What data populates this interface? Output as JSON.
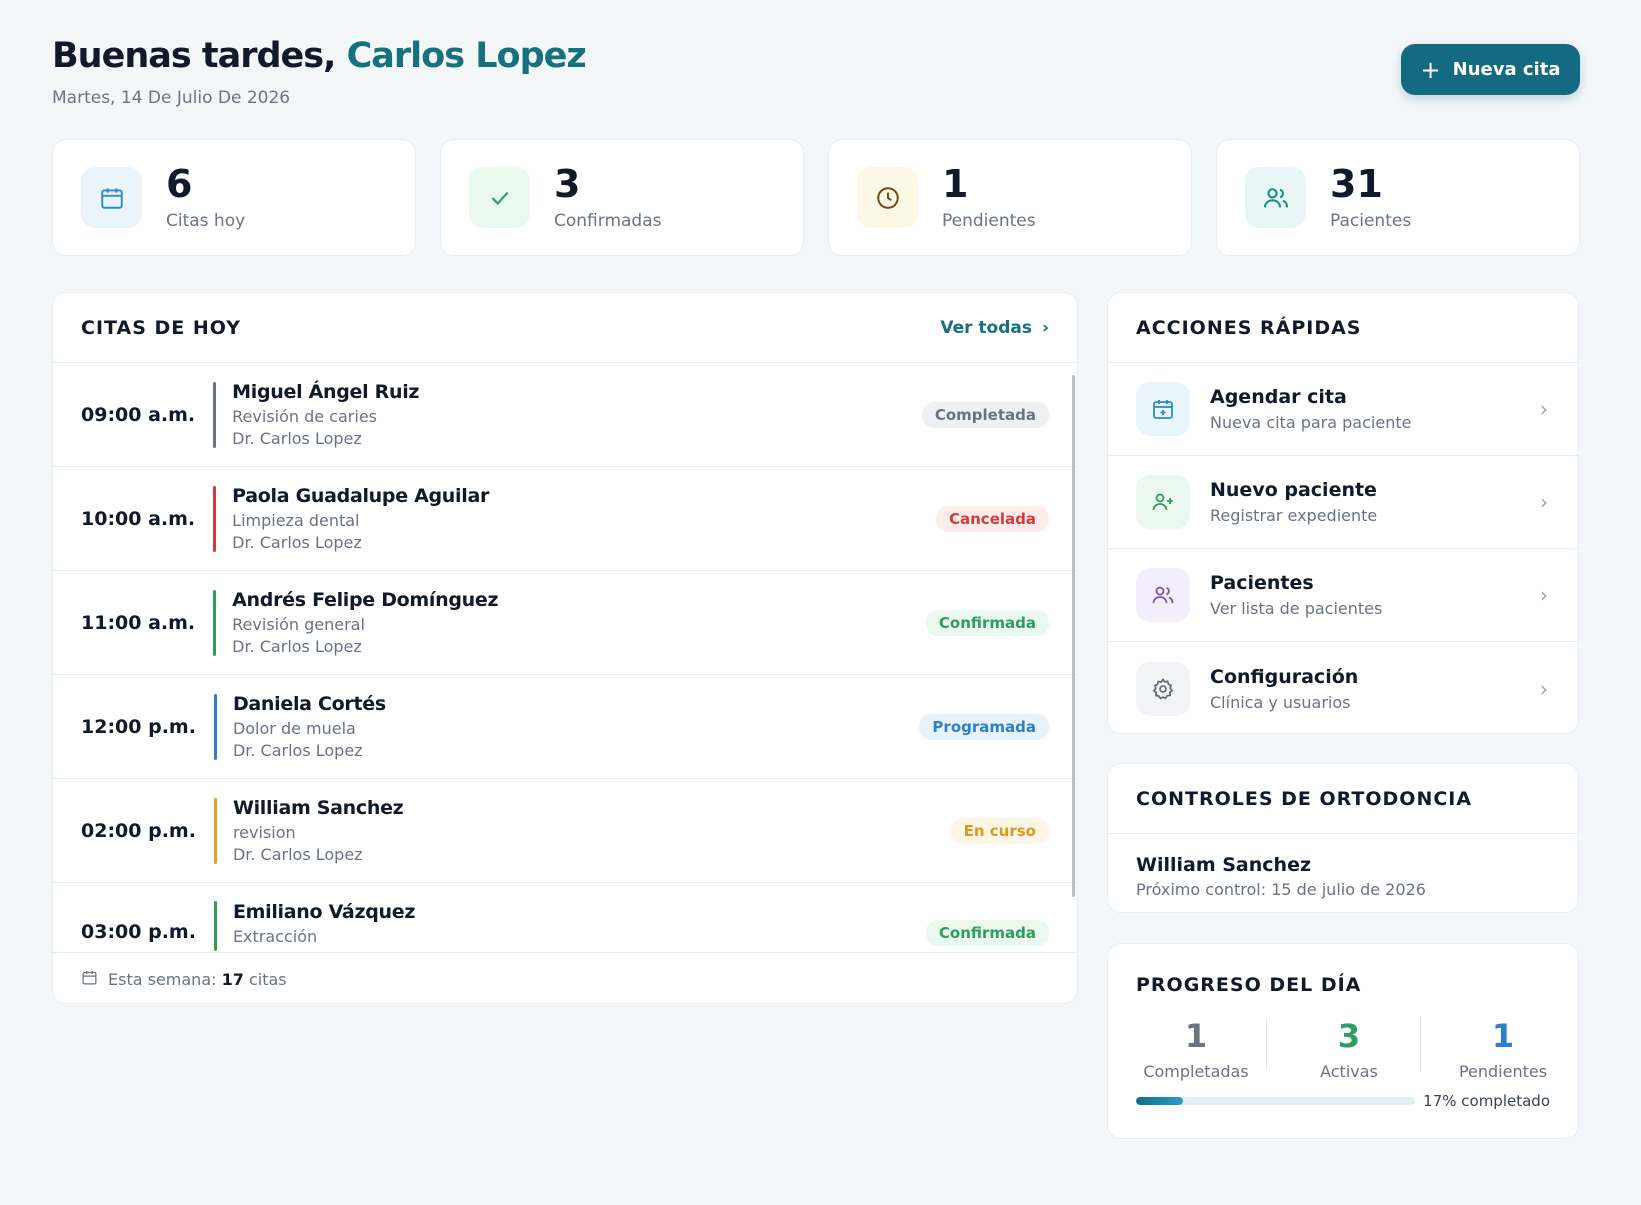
{
  "header": {
    "greeting": "Buenas tardes,",
    "user_name": "Carlos Lopez",
    "date": "Martes, 14 De Julio De 2026",
    "new_button_icon": "plus-icon",
    "new_button_label": "Nueva cita"
  },
  "stats": [
    {
      "icon": "calendar-icon",
      "value": "6",
      "label": "Citas hoy",
      "bg": "#eaf4fb",
      "color": "#2d8bc9"
    },
    {
      "icon": "check-icon",
      "value": "3",
      "label": "Confirmadas",
      "bg": "#eaf8ef",
      "color": "#2f9d5d"
    },
    {
      "icon": "clock-icon",
      "value": "1",
      "label": "Pendientes",
      "bg": "#fdf7e6",
      "color": "#6b4a10"
    },
    {
      "icon": "users-icon",
      "value": "31",
      "label": "Pacientes",
      "bg": "#e8f7f5",
      "color": "#1b8f86"
    }
  ],
  "appointments": {
    "title": "CITAS DE HOY",
    "view_all_label": "Ver todas",
    "items": [
      {
        "time": "09:00 a.m.",
        "name": "Miguel Ángel Ruiz",
        "reason": "Revisión de caries",
        "doctor": "Dr. Carlos Lopez",
        "status": "Completada",
        "bar": "#6b7382",
        "badge_bg": "#eef0f3",
        "badge_fg": "#6b7382"
      },
      {
        "time": "10:00 a.m.",
        "name": "Paola Guadalupe Aguilar",
        "reason": "Limpieza dental",
        "doctor": "Dr. Carlos Lopez",
        "status": "Cancelada",
        "bar": "#d83a3a",
        "badge_bg": "#fdecec",
        "badge_fg": "#d83a3a"
      },
      {
        "time": "11:00 a.m.",
        "name": "Andrés Felipe Domínguez",
        "reason": "Revisión general",
        "doctor": "Dr. Carlos Lopez",
        "status": "Confirmada",
        "bar": "#2f9d5d",
        "badge_bg": "#eaf8ef",
        "badge_fg": "#2f9d5d"
      },
      {
        "time": "12:00 p.m.",
        "name": "Daniela Cortés",
        "reason": "Dolor de muela",
        "doctor": "Dr. Carlos Lopez",
        "status": "Programada",
        "bar": "#2d7fc9",
        "badge_bg": "#e8f2fb",
        "badge_fg": "#2d7fc9"
      },
      {
        "time": "02:00 p.m.",
        "name": "William Sanchez",
        "reason": "revision",
        "doctor": "Dr. Carlos Lopez",
        "status": "En curso",
        "bar": "#e0a22a",
        "badge_bg": "#fdf5e6",
        "badge_fg": "#d99a1e"
      },
      {
        "time": "03:00 p.m.",
        "name": "Emiliano Vázquez",
        "reason": "Extracción",
        "doctor": "",
        "status": "Confirmada",
        "bar": "#2f9d5d",
        "badge_bg": "#eaf8ef",
        "badge_fg": "#2f9d5d"
      }
    ],
    "footer_prefix": "Esta semana:",
    "footer_count": "17",
    "footer_suffix": "citas"
  },
  "quick_actions": {
    "title": "ACCIONES RÁPIDAS",
    "items": [
      {
        "icon": "calendar-plus-icon",
        "title": "Agendar cita",
        "subtitle": "Nueva cita para paciente",
        "bg": "#eaf4fb",
        "color": "#2d8bc9"
      },
      {
        "icon": "user-plus-icon",
        "title": "Nuevo paciente",
        "subtitle": "Registrar expediente",
        "bg": "#eaf8ef",
        "color": "#2f9d5d"
      },
      {
        "icon": "users-icon",
        "title": "Pacientes",
        "subtitle": "Ver lista de pacientes",
        "bg": "#f3eefb",
        "color": "#7a52b3"
      },
      {
        "icon": "gear-icon",
        "title": "Configuración",
        "subtitle": "Clínica y usuarios",
        "bg": "#f1f3f6",
        "color": "#5b6472"
      }
    ]
  },
  "ortho": {
    "title": "CONTROLES DE ORTODONCIA",
    "patient": "William Sanchez",
    "next_control": "Próximo control: 15 de julio de 2026"
  },
  "progress": {
    "title": "PROGRESO DEL DÍA",
    "completed_value": "1",
    "completed_label": "Completadas",
    "active_value": "3",
    "active_label": "Activas",
    "pending_value": "1",
    "pending_label": "Pendientes",
    "percent": 17,
    "percent_label": "17% completado"
  }
}
